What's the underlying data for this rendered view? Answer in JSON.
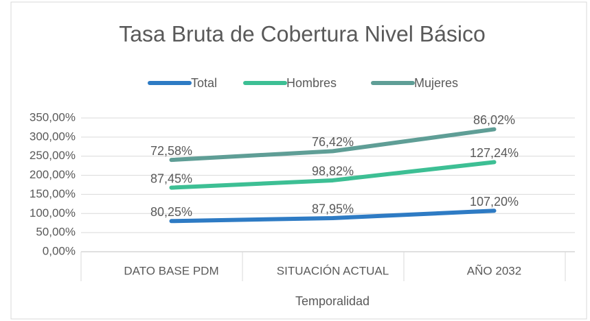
{
  "chart_data": {
    "type": "line",
    "stacked": true,
    "title": "Tasa Bruta de Cobertura Nivel Básico",
    "x_label": "Temporalidad",
    "categories": [
      "DATO BASE PDM",
      "SITUACIÓN ACTUAL",
      "AÑO 2032"
    ],
    "series": [
      {
        "name": "Total",
        "color": "#2e7bc4",
        "values": [
          80.25,
          87.95,
          107.2
        ],
        "value_labels": [
          "80,25%",
          "87,95%",
          "107,20%"
        ]
      },
      {
        "name": "Hombres",
        "color": "#3dbf94",
        "values": [
          87.45,
          98.82,
          127.24
        ],
        "value_labels": [
          "87,45%",
          "98,82%",
          "127,24%"
        ]
      },
      {
        "name": "Mujeres",
        "color": "#5f9e96",
        "values": [
          72.58,
          76.42,
          86.02
        ],
        "value_labels": [
          "72,58%",
          "76,42%",
          "86,02%"
        ]
      }
    ],
    "ylim": [
      0,
      350
    ],
    "yticks": [
      {
        "value": 0,
        "label": "0,00%"
      },
      {
        "value": 50,
        "label": "50,00%"
      },
      {
        "value": 100,
        "label": "100,00%"
      },
      {
        "value": 150,
        "label": "150,00%"
      },
      {
        "value": 200,
        "label": "200,00%"
      },
      {
        "value": 250,
        "label": "250,00%"
      },
      {
        "value": 300,
        "label": "300,00%"
      },
      {
        "value": 350,
        "label": "350,00%"
      }
    ],
    "grid": true,
    "legend": "top"
  }
}
